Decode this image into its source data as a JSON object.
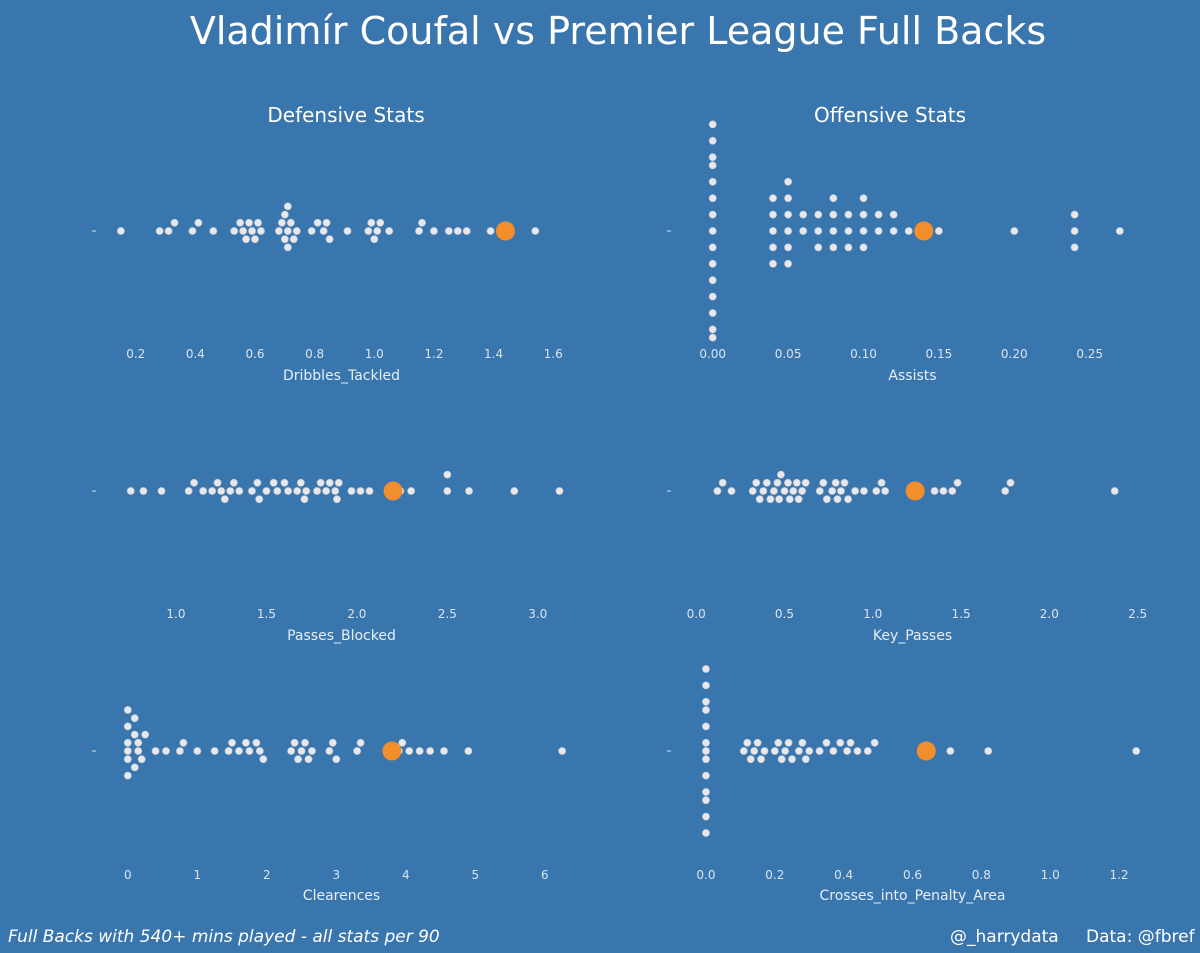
{
  "title": "Vladimír Coufal vs Premier League Full Backs",
  "columns": {
    "left": "Defensive Stats",
    "right": "Offensive Stats"
  },
  "footer": {
    "note": "Full Backs with 540+ mins played - all stats per 90",
    "author": "@_harrydata",
    "source": "Data: @fbref"
  },
  "colors": {
    "background": "#3a76ae",
    "points": "#e8e8ec",
    "highlight": "#f28e2b"
  },
  "chart_data": [
    {
      "type": "scatter",
      "xlabel": "Dribbles_Tackled",
      "ticks": [
        0.2,
        0.4,
        0.6,
        0.8,
        1.0,
        1.2,
        1.4,
        1.6
      ],
      "tick_labels": [
        "0.2",
        "0.4",
        "0.6",
        "0.8",
        "1.0",
        "1.2",
        "1.4",
        "1.6"
      ],
      "xlim": [
        0.08,
        1.7
      ],
      "values": [
        0.15,
        0.28,
        0.31,
        0.33,
        0.39,
        0.41,
        0.46,
        0.53,
        0.55,
        0.56,
        0.57,
        0.58,
        0.59,
        0.6,
        0.61,
        0.62,
        0.68,
        0.69,
        0.7,
        0.7,
        0.71,
        0.71,
        0.71,
        0.72,
        0.73,
        0.74,
        0.79,
        0.81,
        0.83,
        0.84,
        0.85,
        0.91,
        0.98,
        0.99,
        1.0,
        1.01,
        1.02,
        1.05,
        1.15,
        1.16,
        1.2,
        1.25,
        1.28,
        1.31,
        1.39,
        1.54
      ],
      "highlight": 1.44
    },
    {
      "type": "scatter",
      "xlabel": "Assists",
      "ticks": [
        0.0,
        0.05,
        0.1,
        0.15,
        0.2,
        0.25
      ],
      "tick_labels": [
        "0.00",
        "0.05",
        "0.10",
        "0.15",
        "0.20",
        "0.25"
      ],
      "xlim": [
        -0.025,
        0.29
      ],
      "values": [
        0,
        0,
        0,
        0,
        0,
        0,
        0,
        0,
        0,
        0,
        0,
        0,
        0,
        0,
        0,
        0.04,
        0.04,
        0.04,
        0.04,
        0.04,
        0.05,
        0.05,
        0.05,
        0.05,
        0.05,
        0.05,
        0.06,
        0.06,
        0.07,
        0.07,
        0.07,
        0.08,
        0.08,
        0.08,
        0.08,
        0.09,
        0.09,
        0.09,
        0.1,
        0.1,
        0.1,
        0.1,
        0.11,
        0.11,
        0.12,
        0.12,
        0.13,
        0.15,
        0.2,
        0.24,
        0.24,
        0.24,
        0.27
      ],
      "highlight": 0.14
    },
    {
      "type": "scatter",
      "xlabel": "Passes_Blocked",
      "ticks": [
        1.0,
        1.5,
        2.0,
        2.5,
        3.0
      ],
      "tick_labels": [
        "1.0",
        "1.5",
        "2.0",
        "2.5",
        "3.0"
      ],
      "xlim": [
        0.58,
        3.25
      ],
      "values": [
        0.75,
        0.82,
        0.92,
        1.07,
        1.1,
        1.15,
        1.2,
        1.23,
        1.25,
        1.27,
        1.3,
        1.32,
        1.35,
        1.42,
        1.45,
        1.46,
        1.5,
        1.54,
        1.56,
        1.6,
        1.62,
        1.67,
        1.69,
        1.71,
        1.72,
        1.78,
        1.8,
        1.83,
        1.85,
        1.88,
        1.89,
        1.9,
        1.97,
        2.02,
        2.07,
        2.24,
        2.3,
        2.5,
        2.5,
        2.62,
        2.87,
        3.12
      ],
      "highlight": 2.2
    },
    {
      "type": "scatter",
      "xlabel": "Key_Passes",
      "ticks": [
        0.0,
        0.5,
        1.0,
        1.5,
        2.0,
        2.5
      ],
      "tick_labels": [
        "0.0",
        "0.5",
        "1.0",
        "1.5",
        "2.0",
        "2.5"
      ],
      "xlim": [
        -0.12,
        2.57
      ],
      "values": [
        0.12,
        0.15,
        0.2,
        0.32,
        0.34,
        0.36,
        0.38,
        0.4,
        0.42,
        0.44,
        0.46,
        0.47,
        0.48,
        0.5,
        0.52,
        0.53,
        0.55,
        0.57,
        0.58,
        0.6,
        0.62,
        0.7,
        0.72,
        0.74,
        0.77,
        0.79,
        0.8,
        0.82,
        0.84,
        0.86,
        0.9,
        0.95,
        1.02,
        1.05,
        1.07,
        1.35,
        1.4,
        1.45,
        1.48,
        1.75,
        1.78,
        2.37
      ],
      "highlight": 1.24
    },
    {
      "type": "scatter",
      "xlabel": "Clearences",
      "ticks": [
        0,
        1,
        2,
        3,
        4,
        5,
        6
      ],
      "tick_labels": [
        "0",
        "1",
        "2",
        "3",
        "4",
        "5",
        "6"
      ],
      "xlim": [
        -0.4,
        6.55
      ],
      "values": [
        0,
        0,
        0,
        0,
        0,
        0,
        0.1,
        0.1,
        0.1,
        0.15,
        0.15,
        0.2,
        0.25,
        0.4,
        0.55,
        0.75,
        0.8,
        1.0,
        1.25,
        1.45,
        1.5,
        1.6,
        1.7,
        1.75,
        1.85,
        1.9,
        1.95,
        2.35,
        2.4,
        2.45,
        2.5,
        2.55,
        2.6,
        2.65,
        2.9,
        2.95,
        3.0,
        3.3,
        3.35,
        3.9,
        3.95,
        4.05,
        4.2,
        4.35,
        4.55,
        4.9,
        6.25
      ],
      "highlight": 3.8
    },
    {
      "type": "scatter",
      "xlabel": "Crosses_into_Penalty_Area",
      "ticks": [
        0.0,
        0.2,
        0.4,
        0.6,
        0.8,
        1.0,
        1.2
      ],
      "tick_labels": [
        "0.0",
        "0.2",
        "0.4",
        "0.6",
        "0.8",
        "1.0",
        "1.2"
      ],
      "xlim": [
        -0.09,
        1.29
      ],
      "values": [
        0,
        0,
        0,
        0,
        0,
        0,
        0,
        0,
        0,
        0,
        0,
        0,
        0,
        0.11,
        0.12,
        0.13,
        0.14,
        0.15,
        0.16,
        0.17,
        0.2,
        0.21,
        0.22,
        0.23,
        0.24,
        0.25,
        0.27,
        0.28,
        0.29,
        0.3,
        0.33,
        0.35,
        0.37,
        0.39,
        0.41,
        0.42,
        0.44,
        0.47,
        0.49,
        0.64,
        0.71,
        0.82,
        1.25
      ],
      "highlight": 0.64
    }
  ]
}
